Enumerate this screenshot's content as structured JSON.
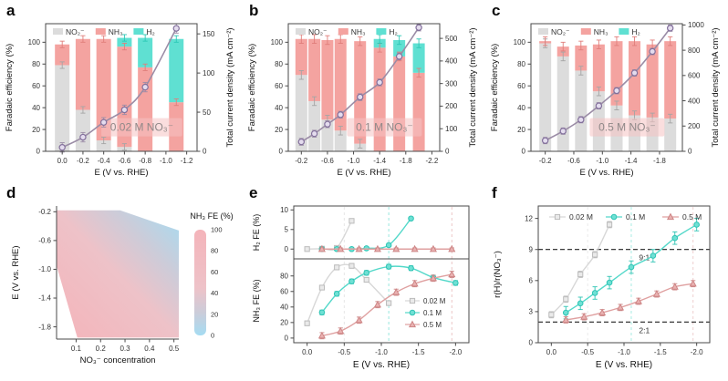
{
  "figure": {
    "panels": [
      "a",
      "b",
      "c",
      "d",
      "e",
      "f"
    ]
  },
  "colors": {
    "axis": "#4a4a4a",
    "tick_text": "#333333",
    "title_text": "#111111",
    "line_purple": "#9b8ca6",
    "line_marker_fill": "#e4dcee",
    "line_marker_stroke": "#826f9b",
    "label_bg": "#f6c3c3",
    "label_text": "#8f8888",
    "bar_colors": {
      "NO₂⁻": "#dcdcdc",
      "NH₃": "#f4a3a0",
      "H₂": "#5fe0d2"
    },
    "bar_err": {
      "NO₂⁻": "#a5a5a5",
      "NH₃": "#e07e7b",
      "H₂": "#2cc8b6"
    },
    "series_colors": {
      "gray": {
        "line": "#d7d7d7",
        "stroke": "#bcbcbc",
        "fill": "#eaeaea"
      },
      "teal": {
        "line": "#53d8c9",
        "stroke": "#2ec4b4",
        "fill": "#6fe0d4"
      },
      "pink": {
        "line": "#dfa0a0",
        "stroke": "#cd8585",
        "fill": "#e9b1b1"
      }
    },
    "heatmap": {
      "high": "#f4b4ba",
      "mid1": "#eec2c8",
      "mid2": "#ccccd9",
      "low": "#a5dcf2"
    },
    "hline_color": "#222222"
  },
  "chart_data": [
    {
      "id": "a",
      "type": "bar",
      "title": "0.02 M NO₃⁻",
      "xlabel": "E (V vs. RHE)",
      "ylabel_left": "Faradaic efficiency (%)",
      "ylabel_right": "Total current density (mA cm⁻²)",
      "legend": [
        "NO₂⁻",
        "NH₃",
        "H₂"
      ],
      "x_ticks": [
        0.0,
        -0.2,
        -0.4,
        -0.6,
        -0.8,
        -1.0,
        -1.2
      ],
      "x_range": [
        0.16,
        -1.3
      ],
      "y_left_ticks": [
        0,
        20,
        40,
        60,
        80,
        100
      ],
      "y_left_max": 117,
      "y_right_ticks": [
        0,
        50,
        100,
        150
      ],
      "y_right_max": 163,
      "bars": {
        "x": [
          0.0,
          -0.2,
          -0.4,
          -0.6,
          -0.8,
          -1.1
        ],
        "stacks": {
          "NO₂⁻": [
            79,
            38,
            10,
            4,
            0,
            0
          ],
          "NH₃": [
            19,
            65,
            93,
            92,
            77,
            45
          ],
          "H₂": [
            0,
            0,
            0,
            8,
            27,
            58
          ]
        },
        "err": 3
      },
      "line": {
        "x": [
          0.0,
          -0.2,
          -0.4,
          -0.6,
          -0.8,
          -1.1
        ],
        "y": [
          5,
          18,
          37,
          53,
          82,
          157
        ],
        "err": 6
      }
    },
    {
      "id": "b",
      "type": "bar",
      "title": "0.1 M NO₃⁻",
      "xlabel": "E (V vs. RHE)",
      "ylabel_left": "Faradaic efficiency (%)",
      "ylabel_right": "Total current density (mA cm⁻²)",
      "legend": [
        "NO₂⁻",
        "NH₃",
        "H₂"
      ],
      "x_ticks": [
        -0.2,
        -0.6,
        -1.0,
        -1.4,
        -1.8,
        -2.2
      ],
      "x_range": [
        0.0,
        -2.32
      ],
      "y_left_ticks": [
        0,
        20,
        40,
        60,
        80,
        100
      ],
      "y_left_max": 117,
      "y_right_ticks": [
        0,
        100,
        200,
        300,
        400,
        500
      ],
      "y_right_max": 565,
      "bars": {
        "x": [
          -0.2,
          -0.4,
          -0.6,
          -0.8,
          -1.1,
          -1.4,
          -1.7,
          -2.0
        ],
        "stacks": {
          "NO₂⁻": [
            70,
            46,
            29,
            19,
            7,
            0,
            0,
            0
          ],
          "NH₃": [
            33,
            57,
            73,
            84,
            94,
            95,
            87,
            72
          ],
          "H₂": [
            0,
            0,
            0,
            0,
            0,
            8,
            15,
            27
          ]
        },
        "err": 4
      },
      "line": {
        "x": [
          -0.2,
          -0.4,
          -0.6,
          -0.8,
          -1.1,
          -1.4,
          -1.7,
          -2.0
        ],
        "y": [
          42,
          78,
          120,
          162,
          240,
          305,
          420,
          548
        ],
        "err": 15
      }
    },
    {
      "id": "c",
      "type": "bar",
      "title": "0.5 M NO₃⁻",
      "xlabel": "E (V vs. RHE)",
      "ylabel_left": "Faradaic efficiency (%)",
      "ylabel_right": "Total current density (mA cm⁻²)",
      "legend": [
        "NO₂⁻",
        "NH₃",
        "H₂"
      ],
      "x_ticks": [
        -0.2,
        -0.6,
        -1.0,
        -1.4,
        -1.8
      ],
      "x_range": [
        0.0,
        -2.12
      ],
      "y_left_ticks": [
        0,
        20,
        40,
        60,
        80,
        100
      ],
      "y_left_max": 117,
      "y_right_ticks": [
        0,
        200,
        400,
        600,
        800,
        1000
      ],
      "y_right_max": 1010,
      "bars": {
        "x": [
          -0.2,
          -0.45,
          -0.7,
          -0.95,
          -1.2,
          -1.45,
          -1.7,
          -1.95
        ],
        "stacks": {
          "NO₂⁻": [
            99,
            87,
            74,
            55,
            42,
            33,
            31,
            30
          ],
          "NH₃": [
            2,
            9,
            23,
            43,
            59,
            68,
            67,
            71
          ],
          "H₂": [
            0,
            0,
            0,
            0,
            0,
            0,
            0,
            0
          ]
        },
        "err": 4
      },
      "line": {
        "x": [
          -0.2,
          -0.45,
          -0.7,
          -0.95,
          -1.2,
          -1.45,
          -1.7,
          -1.95
        ],
        "y": [
          85,
          160,
          250,
          360,
          480,
          620,
          790,
          975
        ],
        "err": 25
      }
    },
    {
      "id": "d",
      "type": "heatmap",
      "xlabel": "NO₃⁻ concentration",
      "ylabel": "E (V vs. RHE)",
      "colorbar_title": "NH₃ FE (%)",
      "colorbar_ticks": [
        100,
        80,
        60,
        40,
        20,
        0
      ],
      "x_ticks": [
        0.1,
        0.2,
        0.3,
        0.4,
        0.5
      ],
      "y_ticks": [
        -0.2,
        -0.6,
        -1.0,
        -1.4,
        -1.8
      ],
      "x_range": [
        0.02,
        0.52
      ],
      "y_range": [
        -0.12,
        -1.97
      ],
      "region_polygon": [
        [
          0.02,
          -0.18
        ],
        [
          0.28,
          -0.18
        ],
        [
          0.52,
          -0.46
        ],
        [
          0.52,
          -1.95
        ],
        [
          0.105,
          -1.95
        ],
        [
          0.02,
          -0.95
        ]
      ],
      "description": "NH₃ FE is high (pink, ~100%) at more negative potentials and mid-to-high NO₃⁻ concentration; low (blue, ~0%) toward the top-right (less negative E, high concentration)."
    },
    {
      "id": "e",
      "type": "line",
      "xlabel": "E (V vs. RHE)",
      "x_ticks": [
        0.0,
        -0.5,
        -1.0,
        -1.5,
        -2.0
      ],
      "x_range": [
        0.18,
        -2.18
      ],
      "legend": [
        "0.02 M",
        "0.1 M",
        "0.5 M"
      ],
      "vlines": [
        {
          "x": -0.5,
          "color_key": "gray"
        },
        {
          "x": -1.1,
          "color_key": "teal"
        },
        {
          "x": -1.95,
          "color_key": "pink"
        }
      ],
      "subplots": [
        {
          "ylabel": "H₂ FE (%)",
          "y_ticks": [
            0,
            5,
            10
          ],
          "y_range": [
            -2.5,
            11
          ],
          "series": [
            {
              "name": "0.02 M",
              "color_key": "gray",
              "marker": "square",
              "err": 0.4,
              "x": [
                0.0,
                -0.2,
                -0.4,
                -0.6
              ],
              "y": [
                0,
                0.1,
                0.3,
                7.2
              ]
            },
            {
              "name": "0.1 M",
              "color_key": "teal",
              "marker": "circle",
              "err": 0.4,
              "x": [
                -0.2,
                -0.4,
                -0.6,
                -0.8,
                -1.1,
                -1.4
              ],
              "y": [
                0,
                0,
                0,
                0.2,
                1.0,
                7.8
              ]
            },
            {
              "name": "0.5 M",
              "color_key": "pink",
              "marker": "triangle",
              "err": 0.3,
              "x": [
                -0.2,
                -0.45,
                -0.7,
                -0.95,
                -1.2,
                -1.45,
                -1.7,
                -1.95
              ],
              "y": [
                0,
                0,
                0,
                0,
                0,
                0,
                0,
                0
              ]
            }
          ]
        },
        {
          "ylabel": "NH₃ FE (%)",
          "y_ticks": [
            0,
            20,
            40,
            60,
            80
          ],
          "y_range": [
            -6,
            102
          ],
          "series": [
            {
              "name": "0.02 M",
              "color_key": "gray",
              "marker": "square",
              "err": 3,
              "x": [
                0.0,
                -0.2,
                -0.4,
                -0.6,
                -0.8,
                -1.1
              ],
              "y": [
                19,
                65,
                91,
                93,
                75,
                45
              ]
            },
            {
              "name": "0.1 M",
              "color_key": "teal",
              "marker": "circle",
              "err": 3,
              "x": [
                -0.2,
                -0.4,
                -0.6,
                -0.8,
                -1.1,
                -1.4,
                -1.7,
                -2.0
              ],
              "y": [
                33,
                57,
                73,
                84,
                92,
                90,
                78,
                71
              ]
            },
            {
              "name": "0.5 M",
              "color_key": "pink",
              "marker": "triangle",
              "err": 4,
              "x": [
                -0.2,
                -0.45,
                -0.7,
                -0.95,
                -1.2,
                -1.45,
                -1.7,
                -1.95
              ],
              "y": [
                3,
                9,
                23,
                43,
                59,
                70,
                77,
                82
              ]
            }
          ]
        }
      ]
    },
    {
      "id": "f",
      "type": "line",
      "xlabel": "E (V vs. RHE)",
      "ylabel": "r(H)/r(NO₃⁻)",
      "x_ticks": [
        0.0,
        -0.5,
        -1.0,
        -1.5,
        -2.0
      ],
      "x_range": [
        0.18,
        -2.18
      ],
      "y_ticks": [
        0,
        3,
        6,
        9,
        12
      ],
      "y_range": [
        0,
        13.2
      ],
      "legend": [
        "0.02 M",
        "0.1 M",
        "0.5 M"
      ],
      "hlines": [
        {
          "y": 9,
          "label": "9:1"
        },
        {
          "y": 2,
          "label": "2:1"
        }
      ],
      "vlines": [
        {
          "x": -0.5,
          "color_key": "gray"
        },
        {
          "x": -1.1,
          "color_key": "teal"
        },
        {
          "x": -1.95,
          "color_key": "pink"
        }
      ],
      "series": [
        {
          "name": "0.02 M",
          "color_key": "gray",
          "marker": "square",
          "err": 0.3,
          "x": [
            0.0,
            -0.2,
            -0.4,
            -0.6,
            -0.8
          ],
          "y": [
            2.7,
            4.2,
            6.6,
            8.5,
            11.4
          ]
        },
        {
          "name": "0.1 M",
          "color_key": "teal",
          "marker": "circle",
          "err": 0.6,
          "x": [
            -0.2,
            -0.4,
            -0.6,
            -0.8,
            -1.1,
            -1.4,
            -1.7,
            -2.0
          ],
          "y": [
            2.9,
            3.8,
            4.8,
            5.8,
            7.3,
            8.4,
            10.1,
            11.4
          ]
        },
        {
          "name": "0.5 M",
          "color_key": "pink",
          "marker": "triangle",
          "err": 0.3,
          "x": [
            -0.2,
            -0.45,
            -0.7,
            -0.95,
            -1.2,
            -1.45,
            -1.7,
            -1.95
          ],
          "y": [
            2.2,
            2.5,
            2.9,
            3.4,
            4.0,
            4.7,
            5.4,
            5.7
          ]
        }
      ]
    }
  ]
}
